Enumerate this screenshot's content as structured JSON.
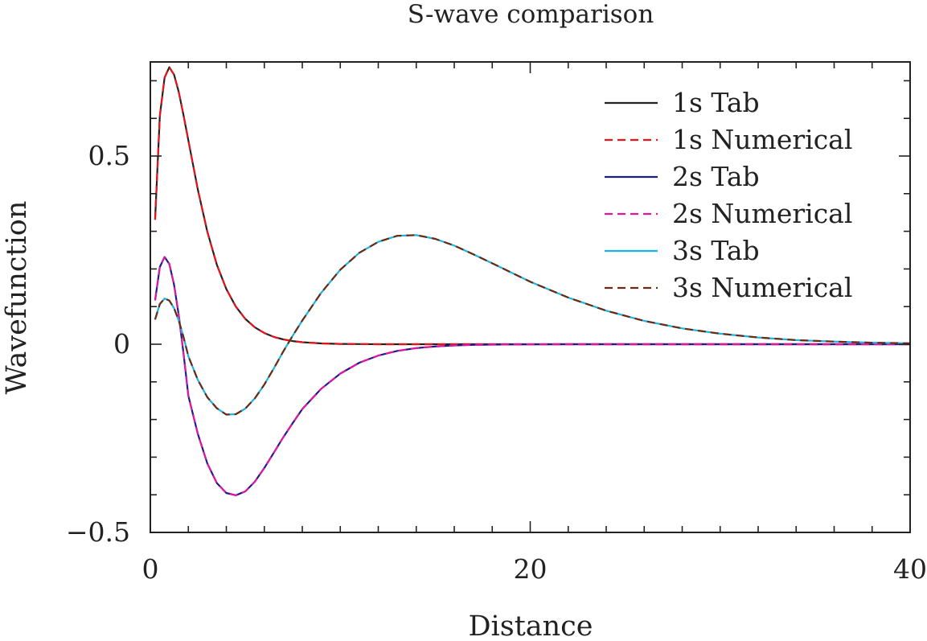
{
  "chart_data": {
    "type": "line",
    "title": "S-wave comparison",
    "xlabel": "Distance",
    "ylabel": "Wavefunction",
    "xlim": [
      0,
      40
    ],
    "ylim": [
      -0.5,
      0.75
    ],
    "x_ticks": [
      {
        "value": 0,
        "label": "0"
      },
      {
        "value": 20,
        "label": "20"
      },
      {
        "value": 40,
        "label": "40"
      }
    ],
    "y_ticks": [
      {
        "value": -0.5,
        "label": "−0.5"
      },
      {
        "value": 0,
        "label": "0"
      },
      {
        "value": 0.5,
        "label": "0.5"
      }
    ],
    "x_minor_step": 2,
    "y_minor_step": 0.1,
    "grid": false,
    "legend_position": "top-right",
    "x": [
      0.25,
      0.5,
      0.75,
      1,
      1.25,
      1.5,
      1.75,
      2,
      2.5,
      3,
      3.5,
      4,
      4.5,
      5,
      5.5,
      6,
      6.5,
      7,
      7.5,
      8,
      9,
      10,
      11,
      12,
      13,
      14,
      15,
      16,
      17,
      18,
      20,
      22,
      24,
      26,
      28,
      30,
      32,
      34,
      36,
      38,
      40
    ],
    "series": [
      {
        "name": "1s Tab",
        "color": "#222222",
        "dash": "solid",
        "values": [
          0.3307,
          0.6065,
          0.7084,
          0.7358,
          0.7162,
          0.6694,
          0.6082,
          0.5413,
          0.4104,
          0.2987,
          0.2113,
          0.1465,
          0.1,
          0.0674,
          0.045,
          0.0297,
          0.0195,
          0.0128,
          0.0083,
          0.0054,
          0.0022,
          0.0009,
          0.0004,
          0.0001,
          0,
          0,
          0,
          0,
          0,
          0,
          0,
          0,
          0,
          0,
          0,
          0,
          0,
          0,
          0,
          0,
          0
        ]
      },
      {
        "name": "1s Numerical",
        "color": "#e8141c",
        "dash": "dashed",
        "values": [
          0.3307,
          0.6065,
          0.7084,
          0.7358,
          0.7162,
          0.6694,
          0.6082,
          0.5413,
          0.4104,
          0.2987,
          0.2113,
          0.1465,
          0.1,
          0.0674,
          0.045,
          0.0297,
          0.0195,
          0.0128,
          0.0083,
          0.0054,
          0.0022,
          0.0009,
          0.0004,
          0.0001,
          0,
          0,
          0,
          0,
          0,
          0,
          0,
          0,
          0,
          0,
          0,
          0,
          0,
          0,
          0,
          0,
          0
        ]
      },
      {
        "name": "2s Tab",
        "color": "#1c1c8c",
        "dash": "solid",
        "values": [
          0.1165,
          0.2051,
          0.2319,
          0.2132,
          0.1582,
          0.0758,
          -0.0252,
          -0.1372,
          -0.2385,
          -0.3169,
          -0.3689,
          -0.3953,
          -0.4012,
          -0.391,
          -0.3653,
          -0.3286,
          -0.2881,
          -0.247,
          -0.2092,
          -0.1722,
          -0.1182,
          -0.0779,
          -0.0491,
          -0.0301,
          -0.0178,
          -0.0103,
          -0.0059,
          -0.0033,
          -0.0018,
          -0.001,
          -0.0003,
          -0.0001,
          0,
          0,
          0,
          0,
          0,
          0,
          0,
          0,
          0
        ]
      },
      {
        "name": "2s Numerical",
        "color": "#e0189c",
        "dash": "dashed",
        "values": [
          0.1165,
          0.2051,
          0.2319,
          0.2132,
          0.1582,
          0.0758,
          -0.0252,
          -0.1372,
          -0.2385,
          -0.3169,
          -0.3689,
          -0.3953,
          -0.4012,
          -0.391,
          -0.3653,
          -0.3286,
          -0.2881,
          -0.247,
          -0.2092,
          -0.1722,
          -0.1182,
          -0.0779,
          -0.0491,
          -0.0301,
          -0.0178,
          -0.0103,
          -0.0059,
          -0.0033,
          -0.0018,
          -0.001,
          -0.0003,
          -0.0001,
          0,
          0,
          0,
          0,
          0,
          0,
          0,
          0,
          0
        ]
      },
      {
        "name": "3s Tab",
        "color": "#19b4e6",
        "dash": "solid",
        "values": [
          0.0657,
          0.1068,
          0.1214,
          0.1161,
          0.0958,
          0.0623,
          0.0189,
          -0.032,
          -0.095,
          -0.141,
          -0.17,
          -0.187,
          -0.186,
          -0.171,
          -0.144,
          -0.107,
          -0.064,
          -0.019,
          0.023,
          0.063,
          0.137,
          0.198,
          0.243,
          0.272,
          0.288,
          0.29,
          0.28,
          0.262,
          0.239,
          0.215,
          0.166,
          0.124,
          0.089,
          0.062,
          0.042,
          0.028,
          0.018,
          0.011,
          0.007,
          0.004,
          0.0025
        ]
      },
      {
        "name": "3s Numerical",
        "color": "#6a2a14",
        "dash": "dashed",
        "values": [
          0.0657,
          0.1068,
          0.1214,
          0.1161,
          0.0958,
          0.0623,
          0.0189,
          -0.032,
          -0.095,
          -0.141,
          -0.17,
          -0.187,
          -0.186,
          -0.171,
          -0.144,
          -0.107,
          -0.064,
          -0.019,
          0.023,
          0.063,
          0.137,
          0.198,
          0.243,
          0.272,
          0.288,
          0.29,
          0.28,
          0.262,
          0.239,
          0.215,
          0.166,
          0.124,
          0.089,
          0.062,
          0.042,
          0.028,
          0.018,
          0.011,
          0.007,
          0.004,
          0.0025
        ]
      }
    ]
  }
}
